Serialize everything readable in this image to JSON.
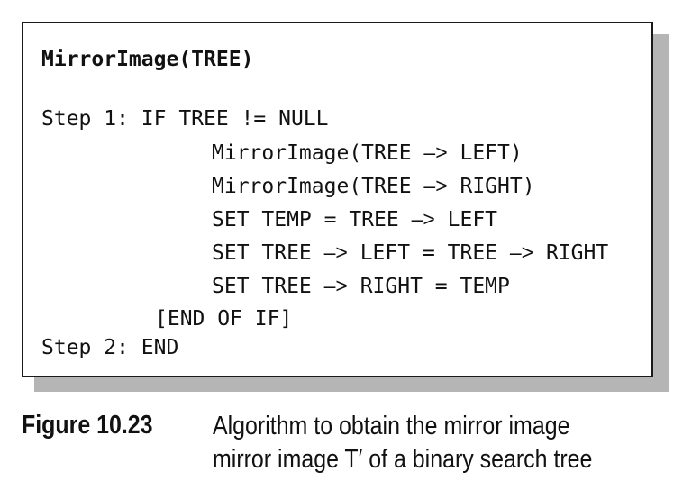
{
  "algorithm": {
    "title": "MirrorImage(TREE)",
    "lines": [
      {
        "parts": [
          {
            "t": "Step 1: IF TREE != NULL",
            "k": "code"
          }
        ]
      },
      {
        "parts": [
          {
            "t": "MirrorImage(TREE ",
            "k": "code"
          },
          {
            "t": "–>",
            "k": "arrow"
          },
          {
            "t": " LEFT)",
            "k": "code"
          }
        ]
      },
      {
        "parts": [
          {
            "t": "MirrorImage(TREE ",
            "k": "code"
          },
          {
            "t": "–>",
            "k": "arrow"
          },
          {
            "t": " RIGHT)",
            "k": "code"
          }
        ]
      },
      {
        "parts": [
          {
            "t": "SET TEMP = TREE ",
            "k": "code"
          },
          {
            "t": "–>",
            "k": "arrow"
          },
          {
            "t": " LEFT",
            "k": "code"
          }
        ]
      },
      {
        "parts": [
          {
            "t": "SET TREE ",
            "k": "code"
          },
          {
            "t": "–>",
            "k": "arrow"
          },
          {
            "t": " LEFT = TREE ",
            "k": "code"
          },
          {
            "t": "–>",
            "k": "arrow"
          },
          {
            "t": " RIGHT",
            "k": "code"
          }
        ]
      },
      {
        "parts": [
          {
            "t": "SET TREE ",
            "k": "code"
          },
          {
            "t": "–>",
            "k": "arrow"
          },
          {
            "t": " RIGHT = TEMP",
            "k": "code"
          }
        ]
      },
      {
        "parts": [
          {
            "t": "[END OF IF]",
            "k": "code"
          }
        ]
      },
      {
        "parts": [
          {
            "t": "Step 2: END",
            "k": "code"
          }
        ]
      }
    ]
  },
  "caption": {
    "label": "Figure 10.23",
    "line1": "Algorithm to obtain the mirror image",
    "line2": "mirror image T′ of a binary search tree"
  }
}
